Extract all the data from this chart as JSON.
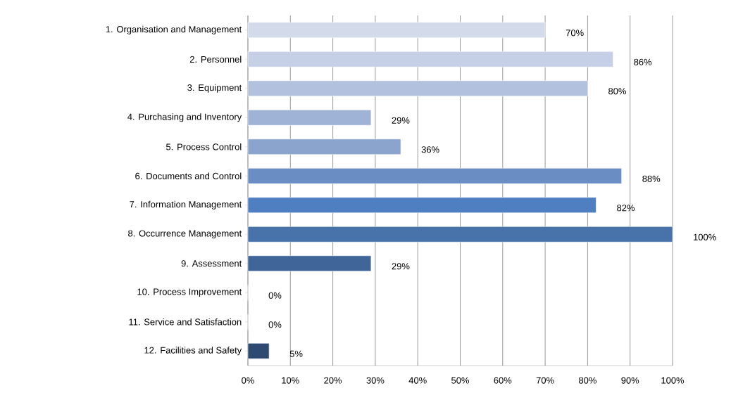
{
  "chart_data": {
    "type": "bar",
    "orientation": "horizontal",
    "categories": [
      "1. Organisation and Management",
      "2. Personnel",
      "3. Equipment",
      "4. Purchasing and Inventory",
      "5. Process Control",
      "6. Documents and Control",
      "7. Information Management",
      "8. Occurrence Management",
      "9. Assessment",
      "10. Process Improvement",
      "11. Service and Satisfaction",
      "12. Facilities and Safety"
    ],
    "values": [
      70,
      86,
      80,
      29,
      36,
      88,
      82,
      100,
      29,
      0,
      0,
      5
    ],
    "value_labels": [
      "70%",
      "86%",
      "80%",
      "29%",
      "36%",
      "88%",
      "82%",
      "100%",
      "29%",
      "0%",
      "0%",
      "5%"
    ],
    "colors": [
      "#d3daea",
      "#c5d0e6",
      "#b2c1de",
      "#9fb3d6",
      "#8aa4ce",
      "#6a8dc4",
      "#4f7fc0",
      "#4772aa",
      "#3f6599",
      "#3a5c8c",
      "#34537e",
      "#2f4a70"
    ],
    "xlim": [
      0,
      100
    ],
    "xticks": [
      {
        "value": 0,
        "label": "0%"
      },
      {
        "value": 10,
        "label": "10%"
      },
      {
        "value": 20,
        "label": "20%"
      },
      {
        "value": 30,
        "label": "30%"
      },
      {
        "value": 40,
        "label": "40%"
      },
      {
        "value": 50,
        "label": "50%"
      },
      {
        "value": 60,
        "label": "60%"
      },
      {
        "value": 70,
        "label": "70%"
      },
      {
        "value": 80,
        "label": "80%"
      },
      {
        "value": 90,
        "label": "90%"
      },
      {
        "value": 100,
        "label": "100%"
      }
    ],
    "grid": "x"
  }
}
